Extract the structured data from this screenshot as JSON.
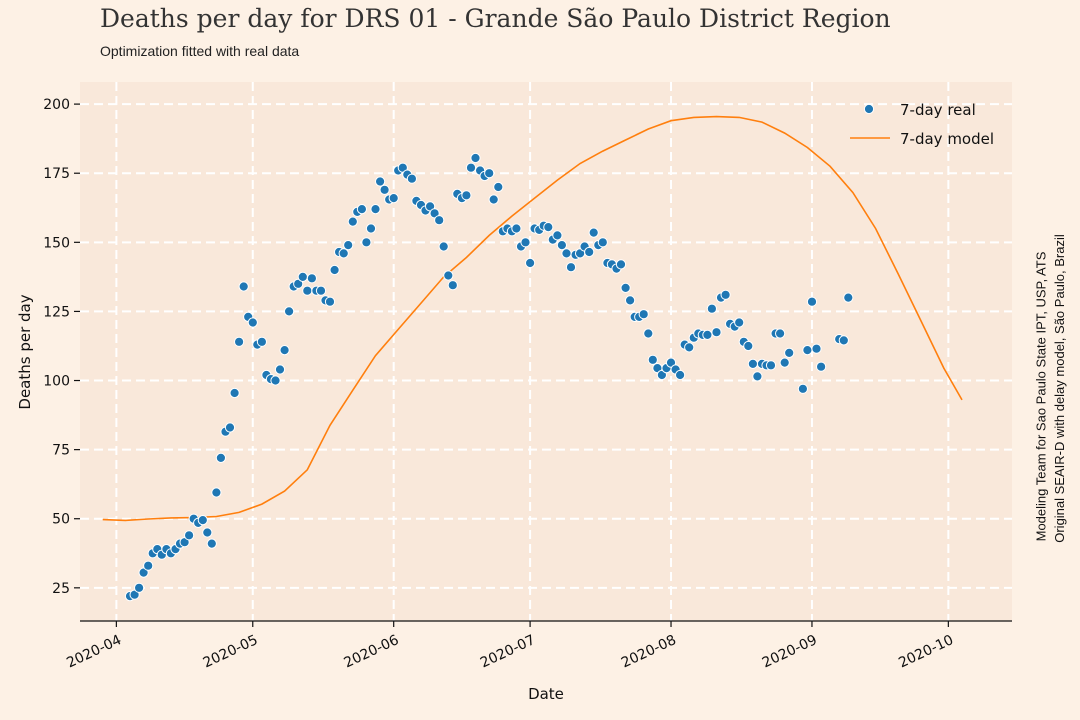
{
  "title": "Deaths per day for DRS 01 - Grande São Paulo District Region",
  "subtitle": "Optimization fitted with real data",
  "credit": [
    "Modeling Team for Sao Paulo State IPT, USP, ATS",
    "Original SEAIR-D with delay model, São Paulo, Brazil"
  ],
  "colors": {
    "real": "#1f77b4",
    "model": "#ff7f0e",
    "plot_bg": "#f9e8da",
    "grid": "#ffffff"
  },
  "chart_data": {
    "type": "scatter",
    "xlabel": "Date",
    "ylabel": "Deaths per day",
    "xlim": [
      "2020-03-24",
      "2020-10-15"
    ],
    "ylim": [
      13,
      208
    ],
    "x_ticks": [
      "2020-04",
      "2020-05",
      "2020-06",
      "2020-07",
      "2020-08",
      "2020-09",
      "2020-10"
    ],
    "x_tick_dates": [
      "2020-04-01",
      "2020-05-01",
      "2020-06-01",
      "2020-07-01",
      "2020-08-01",
      "2020-09-01",
      "2020-10-01"
    ],
    "y_ticks": [
      25,
      50,
      75,
      100,
      125,
      150,
      175,
      200
    ],
    "grid": true,
    "legend_position": "top-right",
    "series": [
      {
        "name": "7-day real",
        "kind": "scatter",
        "points": [
          [
            "2020-04-04",
            22
          ],
          [
            "2020-04-05",
            22.5
          ],
          [
            "2020-04-06",
            25
          ],
          [
            "2020-04-07",
            30.5
          ],
          [
            "2020-04-08",
            33
          ],
          [
            "2020-04-09",
            37.5
          ],
          [
            "2020-04-10",
            39
          ],
          [
            "2020-04-11",
            37
          ],
          [
            "2020-04-12",
            39
          ],
          [
            "2020-04-13",
            37.5
          ],
          [
            "2020-04-14",
            39
          ],
          [
            "2020-04-15",
            41
          ],
          [
            "2020-04-16",
            41.5
          ],
          [
            "2020-04-17",
            44
          ],
          [
            "2020-04-18",
            50
          ],
          [
            "2020-04-19",
            48.5
          ],
          [
            "2020-04-20",
            49.5
          ],
          [
            "2020-04-21",
            45
          ],
          [
            "2020-04-22",
            41
          ],
          [
            "2020-04-23",
            59.5
          ],
          [
            "2020-04-24",
            72
          ],
          [
            "2020-04-25",
            81.5
          ],
          [
            "2020-04-26",
            83
          ],
          [
            "2020-04-27",
            95.5
          ],
          [
            "2020-04-28",
            114
          ],
          [
            "2020-04-29",
            134
          ],
          [
            "2020-04-30",
            123
          ],
          [
            "2020-05-01",
            121
          ],
          [
            "2020-05-02",
            113
          ],
          [
            "2020-05-03",
            114
          ],
          [
            "2020-05-04",
            102
          ],
          [
            "2020-05-05",
            100.5
          ],
          [
            "2020-05-06",
            100
          ],
          [
            "2020-05-07",
            104
          ],
          [
            "2020-05-08",
            111
          ],
          [
            "2020-05-09",
            125
          ],
          [
            "2020-05-10",
            134
          ],
          [
            "2020-05-11",
            135
          ],
          [
            "2020-05-12",
            137.5
          ],
          [
            "2020-05-13",
            132.5
          ],
          [
            "2020-05-14",
            137
          ],
          [
            "2020-05-15",
            132.5
          ],
          [
            "2020-05-16",
            132.5
          ],
          [
            "2020-05-17",
            129
          ],
          [
            "2020-05-18",
            128.5
          ],
          [
            "2020-05-19",
            140
          ],
          [
            "2020-05-20",
            146.5
          ],
          [
            "2020-05-21",
            146
          ],
          [
            "2020-05-22",
            149
          ],
          [
            "2020-05-23",
            157.5
          ],
          [
            "2020-05-24",
            161
          ],
          [
            "2020-05-25",
            162
          ],
          [
            "2020-05-26",
            150
          ],
          [
            "2020-05-27",
            155
          ],
          [
            "2020-05-28",
            162
          ],
          [
            "2020-05-29",
            172
          ],
          [
            "2020-05-30",
            169
          ],
          [
            "2020-05-31",
            165.5
          ],
          [
            "2020-06-01",
            166
          ],
          [
            "2020-06-02",
            176
          ],
          [
            "2020-06-03",
            177
          ],
          [
            "2020-06-04",
            174.5
          ],
          [
            "2020-06-05",
            173
          ],
          [
            "2020-06-06",
            165
          ],
          [
            "2020-06-07",
            163.5
          ],
          [
            "2020-06-08",
            161.5
          ],
          [
            "2020-06-09",
            163
          ],
          [
            "2020-06-10",
            160.5
          ],
          [
            "2020-06-11",
            158
          ],
          [
            "2020-06-12",
            148.5
          ],
          [
            "2020-06-13",
            138
          ],
          [
            "2020-06-14",
            134.5
          ],
          [
            "2020-06-15",
            167.5
          ],
          [
            "2020-06-16",
            166
          ],
          [
            "2020-06-17",
            167
          ],
          [
            "2020-06-18",
            177
          ],
          [
            "2020-06-19",
            180.5
          ],
          [
            "2020-06-20",
            176
          ],
          [
            "2020-06-21",
            174
          ],
          [
            "2020-06-22",
            175
          ],
          [
            "2020-06-23",
            165.5
          ],
          [
            "2020-06-24",
            170
          ],
          [
            "2020-06-25",
            154
          ],
          [
            "2020-06-26",
            155
          ],
          [
            "2020-06-27",
            154
          ],
          [
            "2020-06-28",
            155
          ],
          [
            "2020-06-29",
            148.5
          ],
          [
            "2020-06-30",
            150
          ],
          [
            "2020-07-01",
            142.5
          ],
          [
            "2020-07-02",
            155
          ],
          [
            "2020-07-03",
            154.5
          ],
          [
            "2020-07-04",
            156
          ],
          [
            "2020-07-05",
            155.5
          ],
          [
            "2020-07-06",
            151
          ],
          [
            "2020-07-07",
            152.5
          ],
          [
            "2020-07-08",
            149
          ],
          [
            "2020-07-09",
            146
          ],
          [
            "2020-07-10",
            141
          ],
          [
            "2020-07-11",
            145.5
          ],
          [
            "2020-07-12",
            146
          ],
          [
            "2020-07-13",
            148.5
          ],
          [
            "2020-07-14",
            146.5
          ],
          [
            "2020-07-15",
            153.5
          ],
          [
            "2020-07-16",
            149
          ],
          [
            "2020-07-17",
            150
          ],
          [
            "2020-07-18",
            142.5
          ],
          [
            "2020-07-19",
            142
          ],
          [
            "2020-07-20",
            140.5
          ],
          [
            "2020-07-21",
            142
          ],
          [
            "2020-07-22",
            133.5
          ],
          [
            "2020-07-23",
            129
          ],
          [
            "2020-07-24",
            123
          ],
          [
            "2020-07-25",
            123
          ],
          [
            "2020-07-26",
            124
          ],
          [
            "2020-07-27",
            117
          ],
          [
            "2020-07-28",
            107.5
          ],
          [
            "2020-07-29",
            104.5
          ],
          [
            "2020-07-30",
            102
          ],
          [
            "2020-07-31",
            104.5
          ],
          [
            "2020-08-01",
            106.5
          ],
          [
            "2020-08-02",
            104
          ],
          [
            "2020-08-03",
            102
          ],
          [
            "2020-08-04",
            113
          ],
          [
            "2020-08-05",
            112
          ],
          [
            "2020-08-06",
            115.5
          ],
          [
            "2020-08-07",
            117
          ],
          [
            "2020-08-08",
            116.5
          ],
          [
            "2020-08-09",
            116.5
          ],
          [
            "2020-08-10",
            126
          ],
          [
            "2020-08-11",
            117.5
          ],
          [
            "2020-08-12",
            130
          ],
          [
            "2020-08-13",
            131
          ],
          [
            "2020-08-14",
            120.5
          ],
          [
            "2020-08-15",
            119.5
          ],
          [
            "2020-08-16",
            121
          ],
          [
            "2020-08-17",
            114
          ],
          [
            "2020-08-18",
            112.5
          ],
          [
            "2020-08-19",
            106
          ],
          [
            "2020-08-20",
            101.5
          ],
          [
            "2020-08-21",
            106
          ],
          [
            "2020-08-22",
            105.5
          ],
          [
            "2020-08-23",
            105.5
          ],
          [
            "2020-08-24",
            117
          ],
          [
            "2020-08-25",
            117
          ],
          [
            "2020-08-26",
            106.5
          ],
          [
            "2020-08-27",
            110
          ],
          [
            "2020-08-30",
            97
          ],
          [
            "2020-08-31",
            111
          ],
          [
            "2020-09-01",
            128.5
          ],
          [
            "2020-09-02",
            111.5
          ],
          [
            "2020-09-03",
            105
          ],
          [
            "2020-09-07",
            115
          ],
          [
            "2020-09-08",
            114.5
          ],
          [
            "2020-09-09",
            130
          ]
        ]
      },
      {
        "name": "7-day model",
        "kind": "line",
        "points": [
          [
            "2020-03-29",
            49.7
          ],
          [
            "2020-04-03",
            49.4
          ],
          [
            "2020-04-08",
            49.9
          ],
          [
            "2020-04-13",
            50.3
          ],
          [
            "2020-04-18",
            50.4
          ],
          [
            "2020-04-23",
            50.8
          ],
          [
            "2020-04-28",
            52.3
          ],
          [
            "2020-05-03",
            55.3
          ],
          [
            "2020-05-08",
            60
          ],
          [
            "2020-05-13",
            67.7
          ],
          [
            "2020-05-18",
            83.8
          ],
          [
            "2020-05-23",
            96.5
          ],
          [
            "2020-05-28",
            109
          ],
          [
            "2020-06-02",
            118.5
          ],
          [
            "2020-06-07",
            128
          ],
          [
            "2020-06-12",
            137.5
          ],
          [
            "2020-06-17",
            144.5
          ],
          [
            "2020-06-22",
            152.5
          ],
          [
            "2020-06-27",
            159.5
          ],
          [
            "2020-07-02",
            166
          ],
          [
            "2020-07-07",
            172.5
          ],
          [
            "2020-07-12",
            178.5
          ],
          [
            "2020-07-17",
            183
          ],
          [
            "2020-07-22",
            187
          ],
          [
            "2020-07-27",
            191
          ],
          [
            "2020-08-01",
            194
          ],
          [
            "2020-08-06",
            195.2
          ],
          [
            "2020-08-11",
            195.5
          ],
          [
            "2020-08-16",
            195.2
          ],
          [
            "2020-08-21",
            193.5
          ],
          [
            "2020-08-26",
            189.5
          ],
          [
            "2020-08-31",
            184.3
          ],
          [
            "2020-09-05",
            177.5
          ],
          [
            "2020-09-10",
            168
          ],
          [
            "2020-09-15",
            155
          ],
          [
            "2020-09-20",
            138.5
          ],
          [
            "2020-09-25",
            121.5
          ],
          [
            "2020-09-30",
            104.5
          ],
          [
            "2020-10-04",
            93
          ]
        ]
      }
    ]
  }
}
